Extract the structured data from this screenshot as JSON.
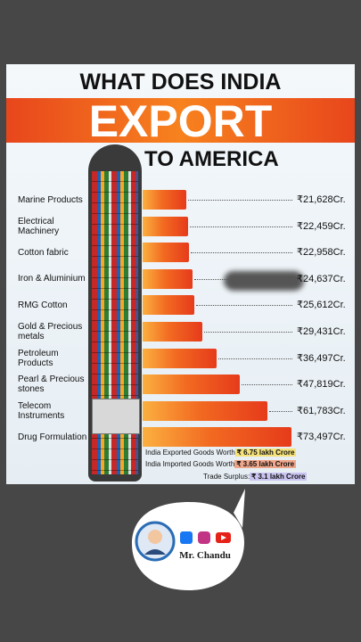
{
  "chart_data": {
    "type": "bar",
    "orientation": "horizontal",
    "title": "WHAT DOES INDIA",
    "title_highlight": "EXPORT",
    "subtitle": "TO AMERICA",
    "categories": [
      "Marine Products",
      "Electrical Machinery",
      "Cotton fabric",
      "Iron & Aluminium",
      "RMG Cotton",
      "Gold & Precious metals",
      "Petroleum Products",
      "Pearl & Precious stones",
      "Telecom Instruments",
      "Drug Formulation"
    ],
    "values": [
      21628,
      22459,
      22958,
      24637,
      25612,
      29431,
      36497,
      47819,
      61783,
      73497
    ],
    "value_labels": [
      "₹21,628Cr.",
      "₹22,459Cr.",
      "₹22,958Cr.",
      "₹24,637Cr.",
      "₹25,612Cr.",
      "₹29,431Cr.",
      "₹36,497Cr.",
      "₹47,819Cr.",
      "₹61,783Cr.",
      "₹73,497Cr."
    ],
    "color": "#f26a21",
    "notes": [
      {
        "text": "India Exported Goods Worth",
        "amount": "₹ 6.75 lakh Crore"
      },
      {
        "text": "India Imported Goods Worth",
        "amount": "₹ 3.65 lakh Crore"
      },
      {
        "text": "Trade Surplus:",
        "amount": "₹ 3.1 lakh Crore"
      }
    ]
  },
  "channel": {
    "name": "Mr. Chandu"
  }
}
